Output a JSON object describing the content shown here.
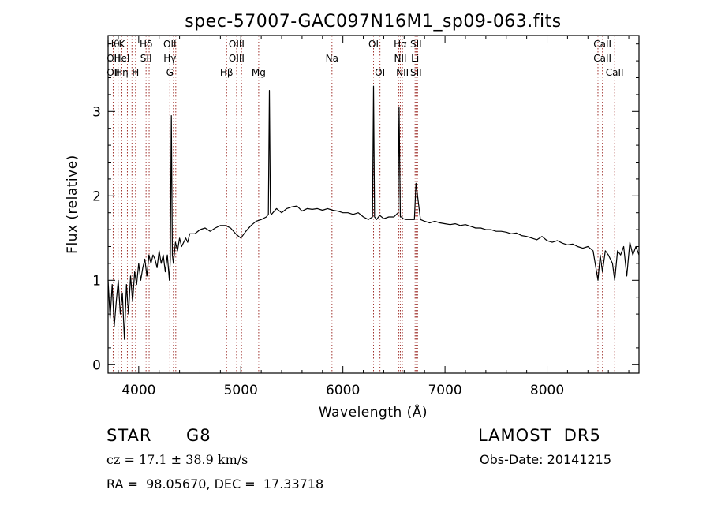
{
  "chart_data": {
    "type": "line",
    "title": "spec-57007-GAC097N16M1_sp09-063.fits",
    "xlabel": "Wavelength (Å)",
    "ylabel": "Flux (relative)",
    "xlim": [
      3700,
      8900
    ],
    "ylim": [
      -0.1,
      3.9
    ],
    "x_ticks": [
      4000,
      5000,
      6000,
      7000,
      8000
    ],
    "y_ticks": [
      0,
      1,
      2,
      3
    ],
    "grid": false,
    "series": [
      {
        "x": [
          3700,
          3720,
          3740,
          3760,
          3780,
          3800,
          3820,
          3840,
          3860,
          3880,
          3900,
          3920,
          3940,
          3960,
          3980,
          4000,
          4020,
          4040,
          4060,
          4080,
          4100,
          4120,
          4140,
          4160,
          4180,
          4200,
          4220,
          4240,
          4260,
          4280,
          4300,
          4310,
          4320,
          4330,
          4340,
          4360,
          4380,
          4400,
          4420,
          4440,
          4460,
          4480,
          4500,
          4550,
          4600,
          4650,
          4700,
          4750,
          4800,
          4850,
          4900,
          4950,
          5000,
          5050,
          5100,
          5150,
          5200,
          5250,
          5270,
          5280,
          5290,
          5300,
          5350,
          5400,
          5450,
          5500,
          5550,
          5600,
          5650,
          5700,
          5750,
          5800,
          5850,
          5900,
          5950,
          6000,
          6050,
          6100,
          6150,
          6200,
          6250,
          6290,
          6300,
          6310,
          6330,
          6360,
          6400,
          6450,
          6500,
          6540,
          6550,
          6563,
          6575,
          6590,
          6620,
          6650,
          6700,
          6716,
          6731,
          6760,
          6800,
          6850,
          6900,
          6950,
          7000,
          7050,
          7100,
          7150,
          7200,
          7250,
          7300,
          7350,
          7400,
          7450,
          7500,
          7550,
          7600,
          7650,
          7700,
          7750,
          7800,
          7850,
          7900,
          7950,
          8000,
          8050,
          8100,
          8150,
          8200,
          8250,
          8300,
          8350,
          8400,
          8450,
          8498,
          8520,
          8542,
          8570,
          8600,
          8640,
          8662,
          8690,
          8720,
          8750,
          8780,
          8810,
          8840,
          8870,
          8900
        ],
        "y": [
          1.0,
          0.55,
          0.95,
          0.45,
          0.75,
          1.0,
          0.6,
          0.85,
          0.3,
          0.95,
          0.6,
          1.05,
          0.75,
          1.1,
          0.95,
          1.2,
          1.0,
          1.15,
          1.25,
          1.05,
          1.3,
          1.2,
          1.3,
          1.25,
          1.15,
          1.35,
          1.2,
          1.3,
          1.1,
          1.3,
          1.0,
          1.25,
          2.95,
          1.3,
          1.2,
          1.45,
          1.35,
          1.5,
          1.4,
          1.45,
          1.5,
          1.45,
          1.55,
          1.55,
          1.6,
          1.62,
          1.58,
          1.62,
          1.65,
          1.65,
          1.62,
          1.55,
          1.5,
          1.58,
          1.65,
          1.7,
          1.72,
          1.75,
          1.78,
          3.25,
          1.8,
          1.78,
          1.85,
          1.8,
          1.85,
          1.87,
          1.88,
          1.82,
          1.85,
          1.84,
          1.85,
          1.83,
          1.85,
          1.83,
          1.82,
          1.8,
          1.8,
          1.78,
          1.8,
          1.75,
          1.72,
          1.75,
          3.3,
          1.75,
          1.72,
          1.77,
          1.73,
          1.75,
          1.75,
          1.8,
          3.05,
          1.75,
          1.75,
          1.73,
          1.72,
          1.72,
          1.72,
          2.15,
          2.0,
          1.72,
          1.7,
          1.68,
          1.7,
          1.68,
          1.67,
          1.66,
          1.67,
          1.65,
          1.66,
          1.64,
          1.62,
          1.62,
          1.6,
          1.6,
          1.58,
          1.58,
          1.57,
          1.55,
          1.56,
          1.53,
          1.52,
          1.5,
          1.48,
          1.52,
          1.47,
          1.45,
          1.47,
          1.44,
          1.42,
          1.43,
          1.4,
          1.38,
          1.4,
          1.35,
          1.0,
          1.3,
          1.1,
          1.35,
          1.3,
          1.2,
          1.0,
          1.35,
          1.3,
          1.4,
          1.05,
          1.45,
          1.3,
          1.4,
          1.3
        ]
      }
    ],
    "line_markers": [
      {
        "w": 3750,
        "lines": [
          {
            "row": 1,
            "text": "Hθ"
          },
          {
            "row": 2,
            "text": "OII"
          },
          {
            "row": 3,
            "text": "OII"
          }
        ]
      },
      {
        "w": 3798,
        "lines": []
      },
      {
        "w": 3835,
        "lines": [
          {
            "row": 1,
            "text": "K"
          },
          {
            "row": 2,
            "text": "HeI"
          },
          {
            "row": 3,
            "text": "Hη"
          }
        ]
      },
      {
        "w": 3889,
        "lines": []
      },
      {
        "w": 3934,
        "lines": []
      },
      {
        "w": 3969,
        "lines": [
          {
            "row": 3,
            "text": "H"
          }
        ]
      },
      {
        "w": 4072,
        "lines": [
          {
            "row": 1,
            "text": "Hδ"
          },
          {
            "row": 2,
            "text": "SII"
          }
        ]
      },
      {
        "w": 4102,
        "lines": []
      },
      {
        "w": 4305,
        "lines": [
          {
            "row": 1,
            "text": "OII"
          },
          {
            "row": 2,
            "text": "Hγ"
          },
          {
            "row": 3,
            "text": "G"
          }
        ]
      },
      {
        "w": 4340,
        "lines": []
      },
      {
        "w": 4363,
        "lines": []
      },
      {
        "w": 4861,
        "lines": [
          {
            "row": 3,
            "text": "Hβ"
          }
        ]
      },
      {
        "w": 4959,
        "lines": [
          {
            "row": 1,
            "text": "OIII"
          },
          {
            "row": 2,
            "text": "OIII"
          }
        ]
      },
      {
        "w": 5007,
        "lines": []
      },
      {
        "w": 5175,
        "lines": [
          {
            "row": 3,
            "text": "Mg"
          }
        ]
      },
      {
        "w": 5893,
        "lines": [
          {
            "row": 2,
            "text": "Na"
          }
        ]
      },
      {
        "w": 6300,
        "lines": [
          {
            "row": 1,
            "text": "OI"
          }
        ]
      },
      {
        "w": 6363,
        "lines": [
          {
            "row": 3,
            "text": "OI"
          }
        ]
      },
      {
        "w": 6548,
        "lines": []
      },
      {
        "w": 6563,
        "lines": [
          {
            "row": 1,
            "text": "Hα"
          },
          {
            "row": 2,
            "text": "NII"
          }
        ]
      },
      {
        "w": 6583,
        "lines": [
          {
            "row": 3,
            "text": "NII"
          }
        ]
      },
      {
        "w": 6707,
        "lines": [
          {
            "row": 2,
            "text": "Li"
          }
        ]
      },
      {
        "w": 6716,
        "lines": [
          {
            "row": 1,
            "text": "SII"
          },
          {
            "row": 3,
            "text": "SII"
          }
        ]
      },
      {
        "w": 6731,
        "lines": []
      },
      {
        "w": 8498,
        "lines": []
      },
      {
        "w": 8542,
        "lines": [
          {
            "row": 1,
            "text": "CaII"
          },
          {
            "row": 2,
            "text": "CaII"
          }
        ]
      },
      {
        "w": 8662,
        "lines": [
          {
            "row": 3,
            "text": "CaII"
          }
        ]
      }
    ]
  },
  "info": {
    "class_label": "STAR",
    "subclass": "G8",
    "survey": "LAMOST  DR5",
    "cz_label": "cz = 17.1 ± 38.9 km/s",
    "obs_date": "Obs-Date: 20141215",
    "radec": "RA =  98.05670, DEC =  17.33718"
  },
  "colors": {
    "line_marker": "#a0322d",
    "spectrum": "#000000"
  }
}
